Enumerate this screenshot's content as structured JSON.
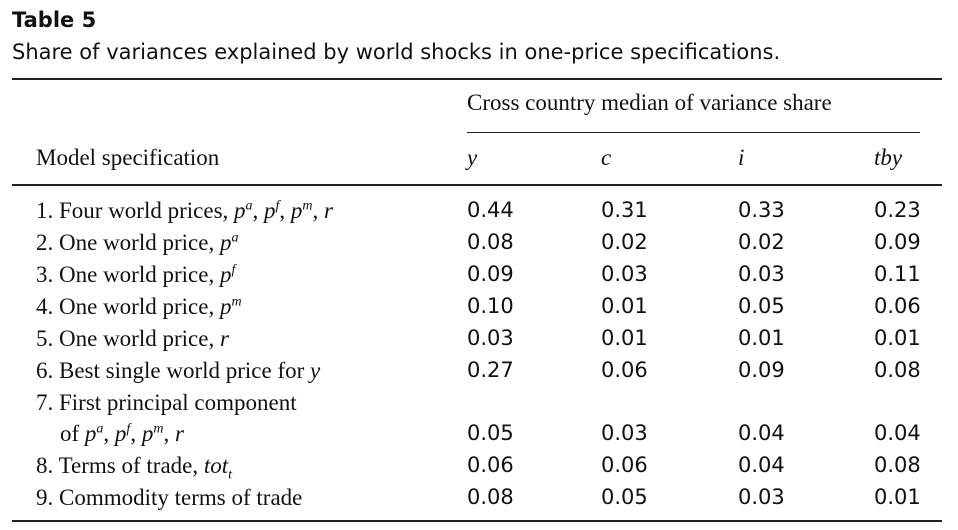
{
  "table": {
    "title": "Table 5",
    "caption": "Share of variances explained by world shocks in one-price specifications.",
    "group_header": "Cross country median of variance share",
    "row_header": "Model specification",
    "columns": [
      "y",
      "c",
      "i",
      "tby"
    ],
    "rows": [
      {
        "label": "1. Four world prices, ",
        "label_vars": "pa, pf, pm, r",
        "values": [
          "0.44",
          "0.31",
          "0.33",
          "0.23"
        ]
      },
      {
        "label": "2. One world price, ",
        "label_vars": "pa",
        "values": [
          "0.08",
          "0.02",
          "0.02",
          "0.09"
        ]
      },
      {
        "label": "3. One world price, ",
        "label_vars": "pf",
        "values": [
          "0.09",
          "0.03",
          "0.03",
          "0.11"
        ]
      },
      {
        "label": "4. One world price, ",
        "label_vars": "pm",
        "values": [
          "0.10",
          "0.01",
          "0.05",
          "0.06"
        ]
      },
      {
        "label": "5. One world price, ",
        "label_vars": "r",
        "values": [
          "0.03",
          "0.01",
          "0.01",
          "0.01"
        ]
      },
      {
        "label": "6. Best single world price for ",
        "label_vars": "y",
        "values": [
          "0.27",
          "0.06",
          "0.09",
          "0.08"
        ]
      },
      {
        "label": "7. First principal component",
        "label_vars": "",
        "values": [
          "",
          "",
          "",
          ""
        ]
      },
      {
        "label": "of ",
        "label_vars": "pa, pf, pm, r",
        "values": [
          "0.05",
          "0.03",
          "0.04",
          "0.04"
        ]
      },
      {
        "label": "8. Terms of trade, ",
        "label_vars": "tott",
        "values": [
          "0.06",
          "0.06",
          "0.04",
          "0.08"
        ]
      },
      {
        "label": "9. Commodity terms of trade",
        "label_vars": "",
        "values": [
          "0.08",
          "0.05",
          "0.03",
          "0.01"
        ]
      }
    ]
  }
}
